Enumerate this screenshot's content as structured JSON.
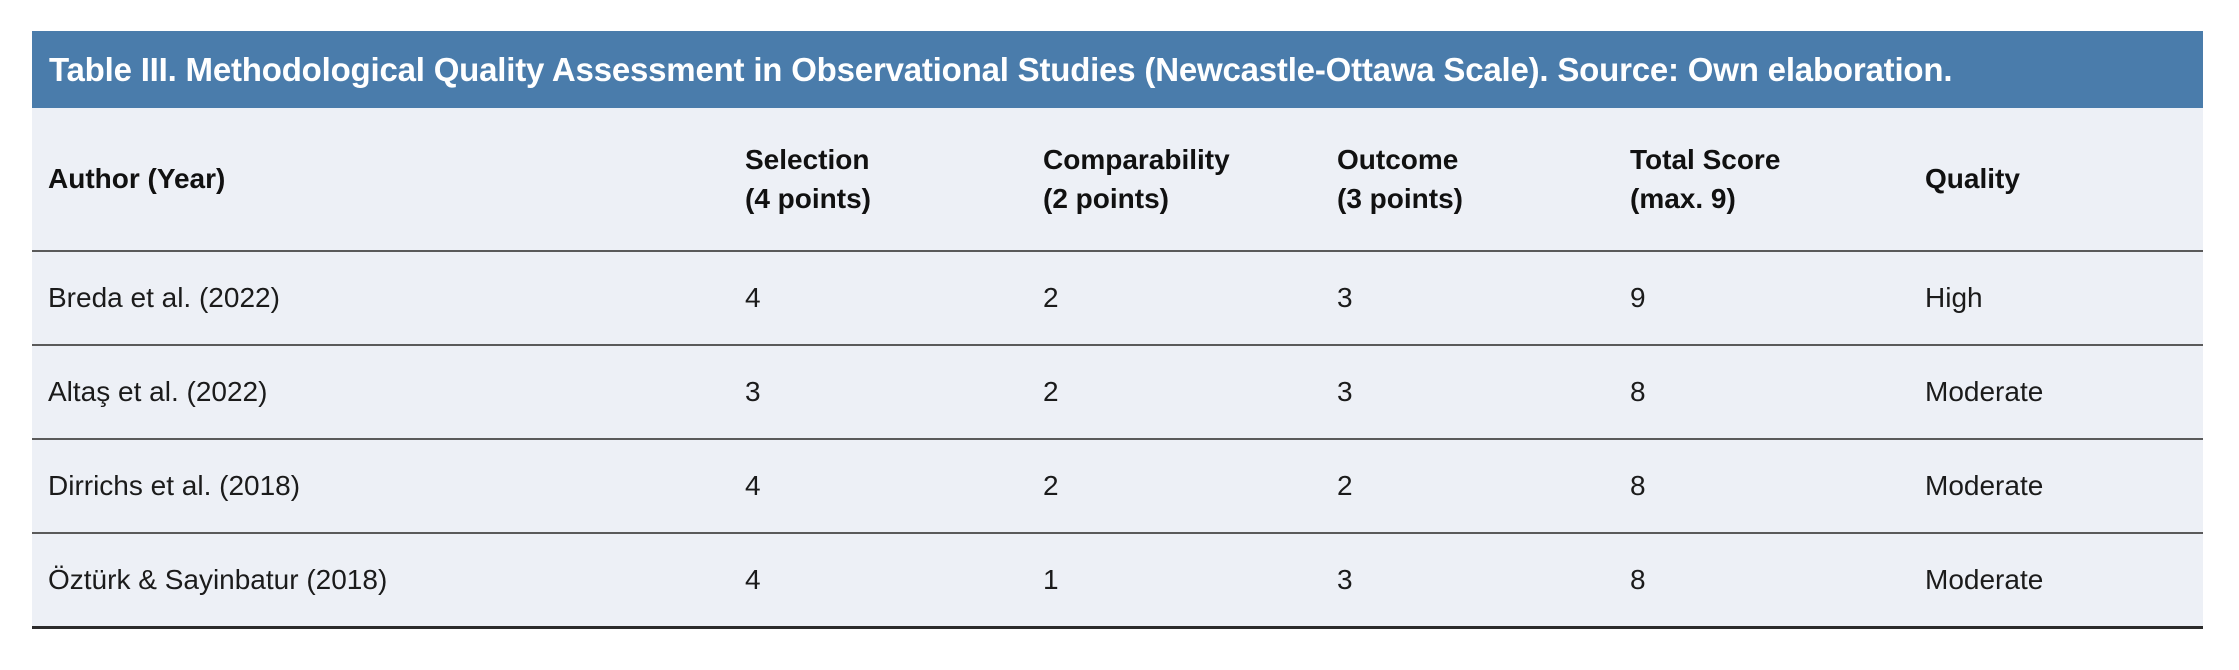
{
  "table": {
    "title": "Table III. Methodological Quality Assessment in Observational Studies (Newcastle-Ottawa Scale). Source: Own elaboration.",
    "colors": {
      "title_bar_bg": "#4a7cab",
      "title_text": "#ffffff",
      "row_bg": "#edf0f6",
      "divider": "#5a5a5a",
      "bottom_border": "#2b2b2b",
      "body_text": "#1b1b1b"
    },
    "columns": [
      {
        "label": "Author (Year)"
      },
      {
        "line1": "Selection",
        "line2": "(4 points)"
      },
      {
        "line1": "Comparability",
        "line2": "(2 points)"
      },
      {
        "line1": "Outcome",
        "line2": "(3 points)"
      },
      {
        "line1": "Total Score",
        "line2": "(max. 9)"
      },
      {
        "label": "Quality"
      }
    ],
    "rows": [
      {
        "author": "Breda et al. (2022)",
        "selection": "4",
        "comparability": "2",
        "outcome": "3",
        "total_score": "9",
        "quality": "High"
      },
      {
        "author": "Altaş et al. (2022)",
        "selection": "3",
        "comparability": "2",
        "outcome": "3",
        "total_score": "8",
        "quality": "Moderate"
      },
      {
        "author": "Dirrichs et al. (2018)",
        "selection": "4",
        "comparability": "2",
        "outcome": "2",
        "total_score": "8",
        "quality": "Moderate"
      },
      {
        "author": "Öztürk & Sayinbatur (2018)",
        "selection": "4",
        "comparability": "1",
        "outcome": "3",
        "total_score": "8",
        "quality": "Moderate"
      }
    ]
  }
}
